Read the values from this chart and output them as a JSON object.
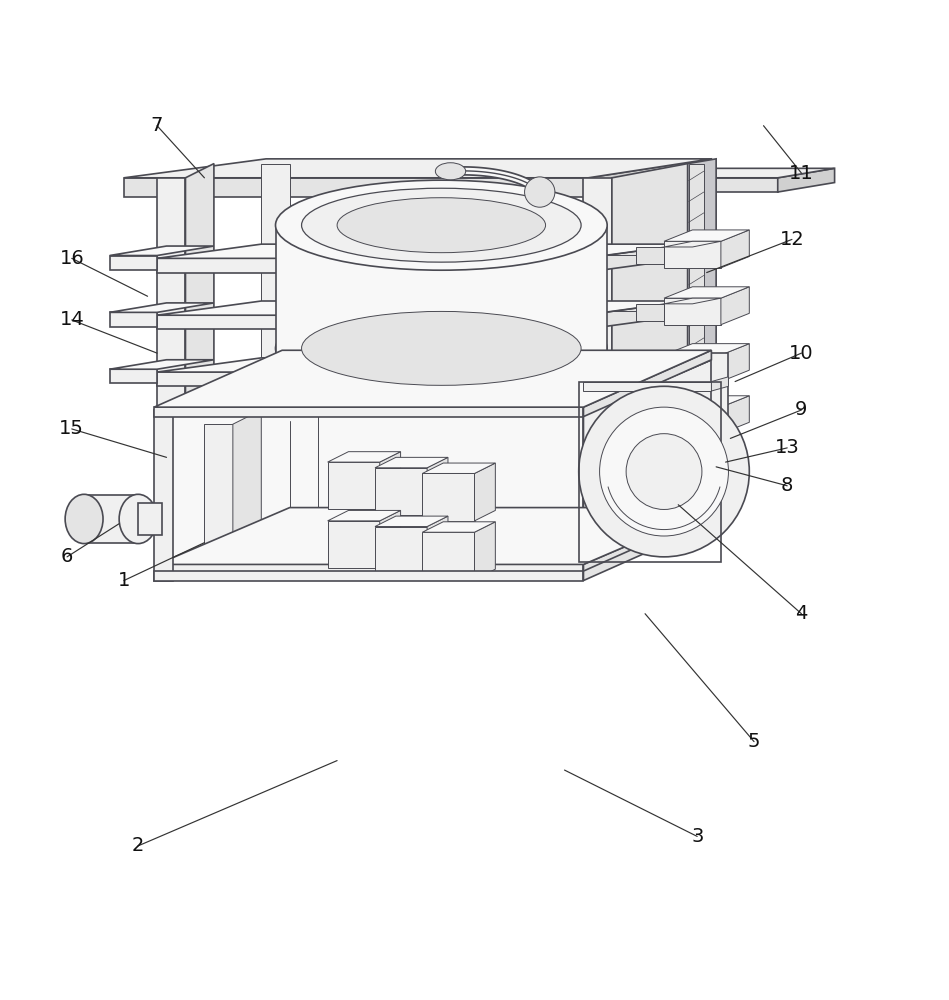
{
  "background_color": "#ffffff",
  "line_color": "#4a4a52",
  "line_color_thin": "#6a6a72",
  "figsize": [
    9.49,
    10.0
  ],
  "dpi": 100,
  "leaders": {
    "1": [
      0.13,
      0.415,
      0.215,
      0.455
    ],
    "2": [
      0.145,
      0.135,
      0.355,
      0.225
    ],
    "3": [
      0.735,
      0.145,
      0.595,
      0.215
    ],
    "4": [
      0.845,
      0.38,
      0.715,
      0.495
    ],
    "5": [
      0.795,
      0.245,
      0.68,
      0.38
    ],
    "6": [
      0.07,
      0.44,
      0.125,
      0.475
    ],
    "7": [
      0.165,
      0.895,
      0.215,
      0.84
    ],
    "8": [
      0.83,
      0.515,
      0.755,
      0.535
    ],
    "9": [
      0.845,
      0.595,
      0.77,
      0.565
    ],
    "10": [
      0.845,
      0.655,
      0.775,
      0.625
    ],
    "11": [
      0.845,
      0.845,
      0.805,
      0.895
    ],
    "12": [
      0.835,
      0.775,
      0.745,
      0.74
    ],
    "13": [
      0.83,
      0.555,
      0.765,
      0.54
    ],
    "14": [
      0.075,
      0.69,
      0.165,
      0.655
    ],
    "15": [
      0.075,
      0.575,
      0.175,
      0.545
    ],
    "16": [
      0.075,
      0.755,
      0.155,
      0.715
    ]
  }
}
